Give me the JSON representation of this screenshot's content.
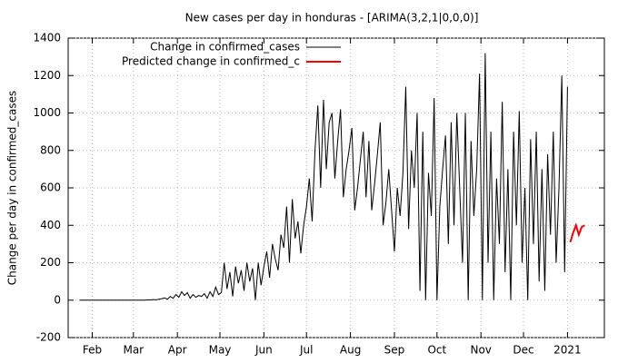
{
  "chart_data": {
    "type": "line",
    "title": "New cases per day in honduras -  [ARIMA(3,2,1|0,0,0)]",
    "y_label": "Change per day in confirmed_cases",
    "xlim": [
      14,
      392
    ],
    "ylim": [
      -200,
      1400
    ],
    "xticks": [
      {
        "value": 31,
        "label": "Feb"
      },
      {
        "value": 60,
        "label": "Mar"
      },
      {
        "value": 91,
        "label": "Apr"
      },
      {
        "value": 121,
        "label": "May"
      },
      {
        "value": 152,
        "label": "Jun"
      },
      {
        "value": 182,
        "label": "Jul"
      },
      {
        "value": 213,
        "label": "Aug"
      },
      {
        "value": 244,
        "label": "Sep"
      },
      {
        "value": 274,
        "label": "Oct"
      },
      {
        "value": 305,
        "label": "Nov"
      },
      {
        "value": 335,
        "label": "Dec"
      },
      {
        "value": 366,
        "label": "2021"
      }
    ],
    "yticks": [
      -200,
      0,
      200,
      400,
      600,
      800,
      1000,
      1200,
      1400
    ],
    "grid": true,
    "legend": "top-left",
    "series": [
      {
        "name": "Change in confirmed_cases",
        "color": "#000000",
        "x": [
          22,
          24,
          26,
          28,
          30,
          32,
          34,
          36,
          38,
          40,
          42,
          44,
          46,
          48,
          50,
          52,
          54,
          56,
          58,
          60,
          62,
          64,
          66,
          68,
          70,
          72,
          74,
          76,
          78,
          80,
          82,
          84,
          86,
          88,
          90,
          92,
          94,
          96,
          98,
          100,
          102,
          104,
          106,
          108,
          110,
          112,
          114,
          116,
          118,
          120,
          122,
          124,
          126,
          128,
          130,
          132,
          134,
          136,
          138,
          140,
          142,
          144,
          146,
          148,
          150,
          152,
          154,
          156,
          158,
          160,
          162,
          164,
          166,
          168,
          170,
          172,
          174,
          176,
          178,
          180,
          182,
          184,
          186,
          188,
          190,
          192,
          194,
          196,
          198,
          200,
          202,
          204,
          206,
          208,
          210,
          212,
          214,
          216,
          218,
          220,
          222,
          224,
          226,
          228,
          230,
          232,
          234,
          236,
          238,
          240,
          242,
          244,
          246,
          248,
          250,
          252,
          254,
          256,
          258,
          260,
          262,
          264,
          266,
          268,
          270,
          272,
          274,
          276,
          278,
          280,
          282,
          284,
          286,
          288,
          290,
          292,
          294,
          296,
          298,
          300,
          302,
          304,
          306,
          308,
          310,
          312,
          314,
          316,
          318,
          320,
          322,
          324,
          326,
          328,
          330,
          332,
          334,
          336,
          338,
          340,
          342,
          344,
          346,
          348,
          350,
          352,
          354,
          356,
          358,
          360,
          362,
          364,
          366
        ],
        "values": [
          0,
          0,
          0,
          0,
          0,
          0,
          0,
          0,
          0,
          0,
          0,
          0,
          0,
          0,
          0,
          0,
          0,
          0,
          0,
          0,
          0,
          0,
          0,
          0,
          1,
          1,
          3,
          2,
          5,
          8,
          12,
          5,
          20,
          10,
          30,
          15,
          45,
          25,
          40,
          10,
          30,
          15,
          25,
          20,
          35,
          10,
          45,
          20,
          70,
          30,
          40,
          200,
          60,
          150,
          20,
          180,
          90,
          160,
          50,
          200,
          100,
          170,
          0,
          200,
          80,
          180,
          260,
          120,
          300,
          220,
          160,
          350,
          280,
          500,
          200,
          540,
          330,
          420,
          250,
          400,
          500,
          650,
          420,
          800,
          1040,
          600,
          1070,
          700,
          950,
          1000,
          650,
          850,
          1020,
          550,
          700,
          800,
          920,
          480,
          600,
          750,
          900,
          550,
          850,
          480,
          620,
          780,
          950,
          400,
          520,
          700,
          480,
          260,
          600,
          450,
          680,
          1140,
          380,
          800,
          600,
          1000,
          50,
          900,
          0,
          680,
          450,
          1080,
          0,
          500,
          700,
          880,
          300,
          950,
          400,
          1000,
          600,
          200,
          1000,
          0,
          850,
          450,
          700,
          1210,
          0,
          1320,
          200,
          900,
          0,
          650,
          300,
          1060,
          150,
          700,
          0,
          900,
          400,
          1010,
          200,
          600,
          0,
          860,
          300,
          900,
          100,
          700,
          50,
          780,
          350,
          900,
          200,
          600,
          1200,
          150,
          1140
        ]
      },
      {
        "name": "Predicted change in confirmed_c",
        "color": "#ff0000",
        "x": [
          368,
          370,
          372,
          374,
          376,
          378
        ],
        "values": [
          310,
          360,
          400,
          350,
          390,
          400
        ]
      }
    ]
  }
}
